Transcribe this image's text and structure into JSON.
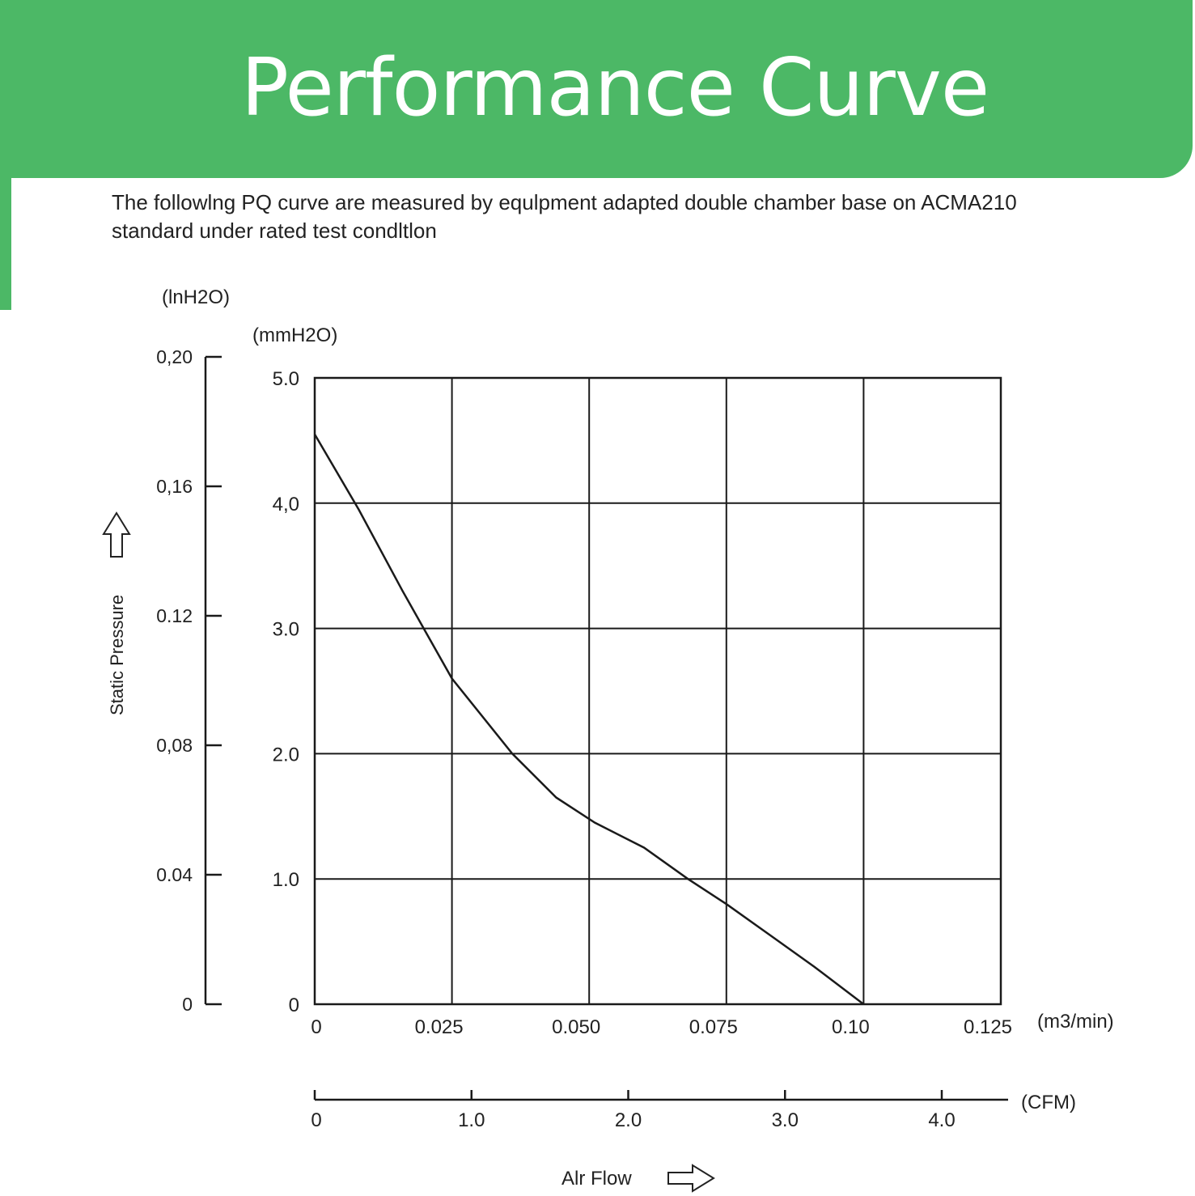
{
  "header": {
    "title": "Performance Curve",
    "description_line1": "The followlng PQ curve are measured by equlpment adapted double chamber base on ACMA210",
    "description_line2": "standard under rated test condltlon"
  },
  "colors": {
    "banner": "#4cb866",
    "grid": "#1a1a1a",
    "curve": "#1a1a1a",
    "text": "#222222"
  },
  "chart_data": {
    "type": "line",
    "title": "Performance Curve",
    "xlabel": "Alr Flow",
    "ylabel": "Static Pressure",
    "x_unit": "(m3/min)",
    "y_unit": "(mmH2O)",
    "y2_unit": "(lnH2O)",
    "x2_unit": "(CFM)",
    "xlim": [
      0,
      0.125
    ],
    "ylim": [
      0,
      5.0
    ],
    "grid": true,
    "x_ticks": [
      "0",
      "0.025",
      "0.050",
      "0.075",
      "0.10",
      "0.125"
    ],
    "y_ticks": [
      "0",
      "1.0",
      "2.0",
      "3.0",
      "4,0",
      "5.0"
    ],
    "y2_ticks": [
      "0",
      "0.04",
      "0,08",
      "0.12",
      "0,16",
      "0,20"
    ],
    "x2_ticks": [
      "0",
      "1.0",
      "2.0",
      "3.0",
      "4.0"
    ],
    "series": [
      {
        "x": [
          0,
          0.008,
          0.016,
          0.025,
          0.036,
          0.044,
          0.051,
          0.06,
          0.068,
          0.075,
          0.083,
          0.091,
          0.1
        ],
        "y": [
          4.55,
          3.95,
          3.3,
          2.6,
          2.0,
          1.65,
          1.45,
          1.25,
          1.0,
          0.8,
          0.55,
          0.3,
          0
        ]
      }
    ]
  }
}
